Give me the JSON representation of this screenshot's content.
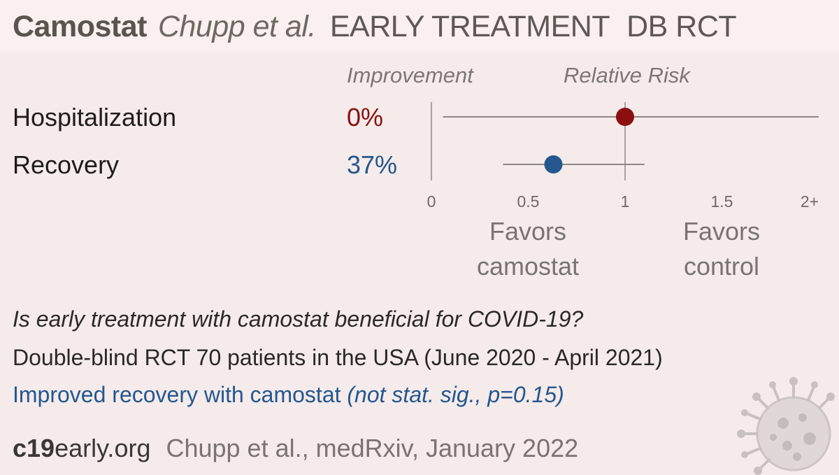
{
  "header": {
    "drug": "Camostat",
    "author": "Chupp et al.",
    "stage": "EARLY TREATMENT",
    "design": "DB RCT"
  },
  "columns": {
    "improvement": "Improvement",
    "relative_risk": "Relative Risk"
  },
  "favors": {
    "left": "Favors camostat",
    "right": "Favors control"
  },
  "summary": {
    "question": "Is early treatment with camostat beneficial for COVID-19?",
    "description": "Double-blind RCT 70 patients in the USA (June 2020 - April 2021)",
    "result": "Improved recovery with camostat",
    "result_note": "(not stat. sig., p=0.15)"
  },
  "footer": {
    "brand_bold": "c19",
    "brand_rest": "early.org",
    "citation": "Chupp et al., medRxiv, January 2022"
  },
  "colors": {
    "harm": "#8b0f0f",
    "benefit": "#24578f",
    "axis": "#a8a2a0"
  },
  "icons": {
    "decoration": "virus-icon"
  },
  "chart_data": {
    "type": "forest",
    "xlim": [
      0,
      2
    ],
    "reference_line": 1,
    "x_ticks": [
      "0",
      "0.5",
      "1",
      "1.5",
      "2+"
    ],
    "x_tick_values": [
      0,
      0.5,
      1,
      1.5,
      2
    ],
    "rows": [
      {
        "label": "Hospitalization",
        "improvement": "0%",
        "rr": 1.0,
        "ci_low": 0.06,
        "ci_high": 2.0,
        "color": "#8b0f0f"
      },
      {
        "label": "Recovery",
        "improvement": "37%",
        "rr": 0.63,
        "ci_low": 0.37,
        "ci_high": 1.1,
        "color": "#24578f"
      }
    ]
  }
}
